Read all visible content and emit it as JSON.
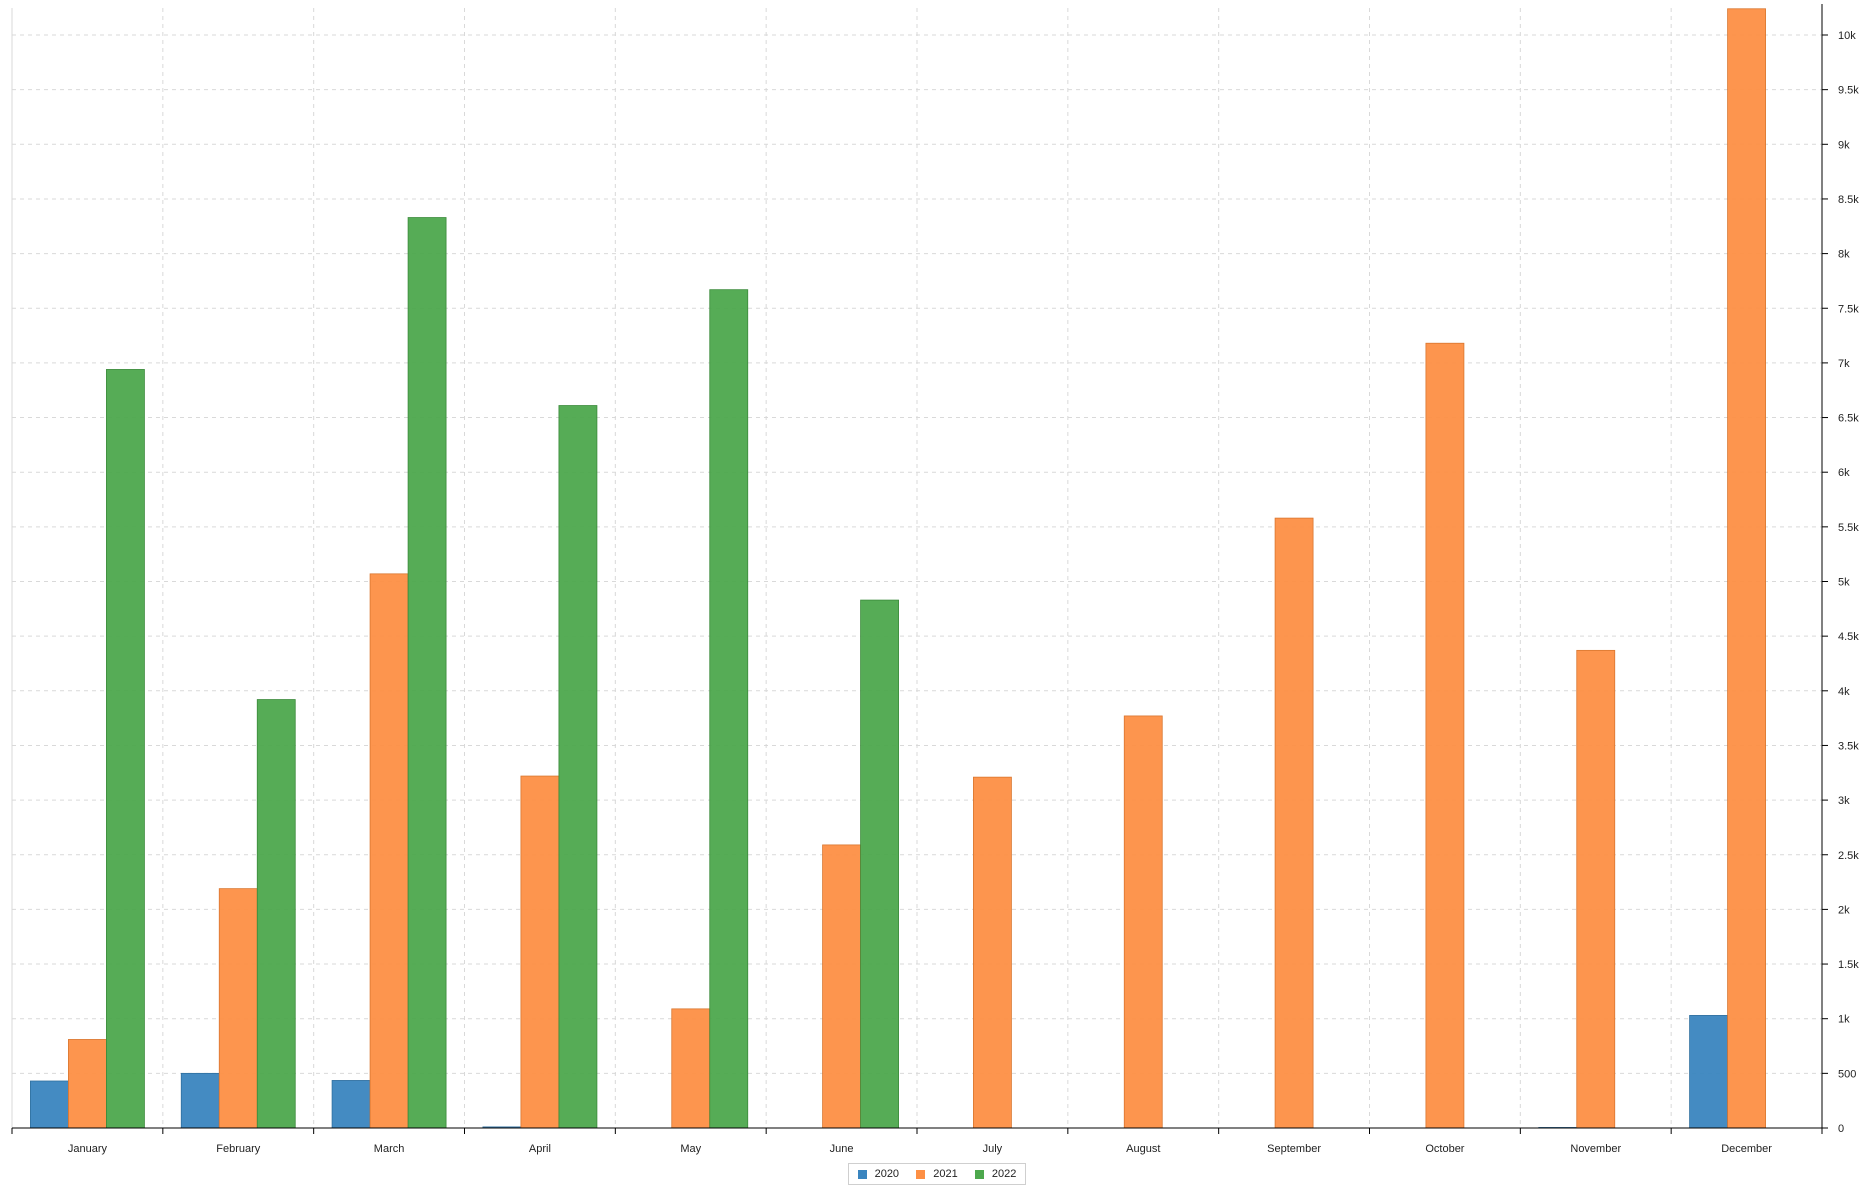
{
  "chart_data": {
    "type": "bar",
    "categories": [
      "January",
      "February",
      "March",
      "April",
      "May",
      "June",
      "July",
      "August",
      "September",
      "October",
      "November",
      "December"
    ],
    "series": [
      {
        "name": "2020",
        "color": "#3a85bf",
        "values": [
          430,
          500,
          435,
          10,
          0,
          0,
          0,
          0,
          0,
          0,
          5,
          1030
        ]
      },
      {
        "name": "2021",
        "color": "#fd8f44",
        "values": [
          810,
          2190,
          5070,
          3220,
          1090,
          2590,
          3210,
          3770,
          5580,
          7180,
          4370,
          10240
        ]
      },
      {
        "name": "2022",
        "color": "#4da84d",
        "values": [
          6940,
          3920,
          8330,
          6610,
          7670,
          4830,
          0,
          0,
          0,
          0,
          0,
          0
        ]
      }
    ],
    "y_ticks": [
      "0",
      "500",
      "1k",
      "1.5k",
      "2k",
      "2.5k",
      "3k",
      "3.5k",
      "4k",
      "4.5k",
      "5k",
      "5.5k",
      "6k",
      "6.5k",
      "7k",
      "7.5k",
      "8k",
      "8.5k",
      "9k",
      "9.5k",
      "10k"
    ],
    "ylim": [
      0,
      10300
    ],
    "yaxis_position": "right",
    "grid": true,
    "legend_position": "bottom-center"
  }
}
